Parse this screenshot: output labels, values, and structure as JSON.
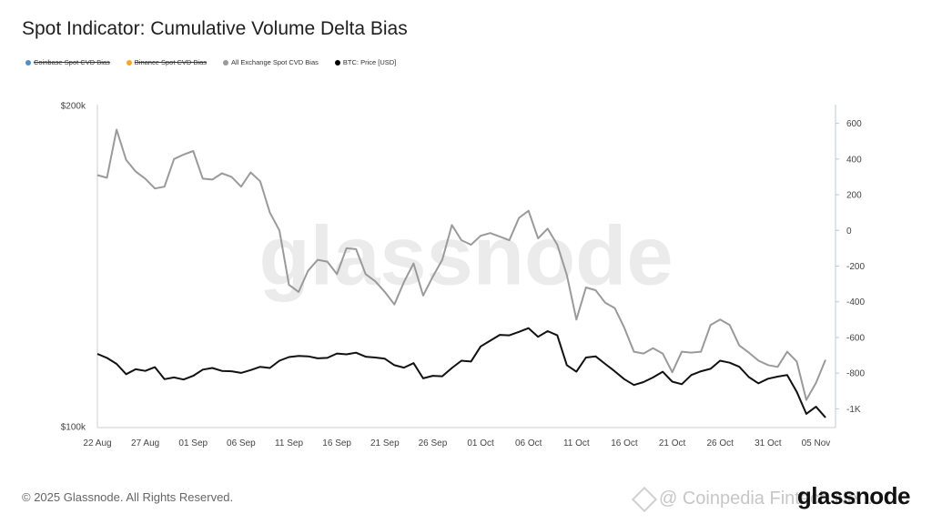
{
  "title": "Spot Indicator: Cumulative Volume Delta Bias",
  "legend": [
    {
      "label": "Coinbase Spot CVD Bias",
      "color": "#4a90c8",
      "active": false
    },
    {
      "label": "Binance Spot CVD Bias",
      "color": "#f5a623",
      "active": false
    },
    {
      "label": "All Exchange Spot CVD Bias",
      "color": "#9a9a9a",
      "active": true
    },
    {
      "label": "BTC: Price [USD]",
      "color": "#000000",
      "active": true
    }
  ],
  "footer": {
    "copyright": "© 2025 Glassnode. All Rights Reserved.",
    "brand": "glassnode",
    "source_watermark": "@ Coinpedia Fintech Ne..."
  },
  "chart_data": {
    "type": "line",
    "title": "Spot Indicator: Cumulative Volume Delta Bias",
    "watermark": "glassnode",
    "x_ticks": [
      "22 Aug",
      "27 Aug",
      "01 Sep",
      "06 Sep",
      "11 Sep",
      "16 Sep",
      "21 Sep",
      "26 Sep",
      "01 Oct",
      "06 Oct",
      "11 Oct",
      "16 Oct",
      "21 Oct",
      "26 Oct",
      "31 Oct",
      "05 Nov"
    ],
    "x_range_days": [
      0,
      76
    ],
    "y_left": {
      "label": "BTC: Price [USD]",
      "ticks": [
        "$100k",
        "$200k"
      ],
      "log_range": [
        100000,
        200000
      ]
    },
    "y_right": {
      "label": "All Exchange Spot CVD Bias",
      "ticks": [
        "600",
        "400",
        "200",
        "0",
        "-200",
        "-400",
        "-600",
        "-800",
        "-1K"
      ],
      "range": [
        -1100,
        700
      ]
    },
    "series": [
      {
        "name": "All Exchange Spot CVD Bias",
        "axis": "right",
        "color": "#9a9a9a",
        "values": [
          310,
          295,
          565,
          395,
          330,
          290,
          235,
          245,
          400,
          425,
          445,
          290,
          285,
          320,
          300,
          245,
          325,
          275,
          100,
          0,
          -305,
          -345,
          -225,
          -165,
          -175,
          -245,
          -100,
          -105,
          -245,
          -285,
          -345,
          -415,
          -290,
          -185,
          -365,
          -260,
          -165,
          30,
          -55,
          -80,
          -30,
          -15,
          -35,
          -55,
          70,
          110,
          -45,
          10,
          -80,
          -250,
          -500,
          -320,
          -335,
          -405,
          -435,
          -545,
          -680,
          -690,
          -660,
          -690,
          -795,
          -680,
          -685,
          -680,
          -530,
          -500,
          -530,
          -645,
          -685,
          -730,
          -755,
          -765,
          -680,
          -735,
          -950,
          -855,
          -725
        ]
      },
      {
        "name": "BTC: Price [USD]",
        "axis": "left",
        "color": "#000000",
        "values": [
          117000,
          116000,
          114500,
          112000,
          113200,
          112800,
          113700,
          110800,
          111200,
          110700,
          111600,
          113100,
          113500,
          112800,
          112700,
          112300,
          113000,
          113800,
          113500,
          115300,
          116200,
          116500,
          116400,
          115900,
          116000,
          117100,
          116900,
          117300,
          116300,
          116100,
          115800,
          114200,
          113600,
          114700,
          111000,
          111600,
          111500,
          113500,
          115300,
          115100,
          118900,
          120400,
          121900,
          121800,
          122700,
          123700,
          121400,
          122900,
          121800,
          114200,
          112600,
          116100,
          116400,
          114500,
          112700,
          110800,
          109400,
          110100,
          111200,
          112600,
          110200,
          109600,
          111800,
          112700,
          113300,
          115300,
          114800,
          113800,
          111300,
          109800,
          110900,
          111400,
          111800,
          107800,
          102800,
          104400,
          102000
        ]
      }
    ]
  }
}
